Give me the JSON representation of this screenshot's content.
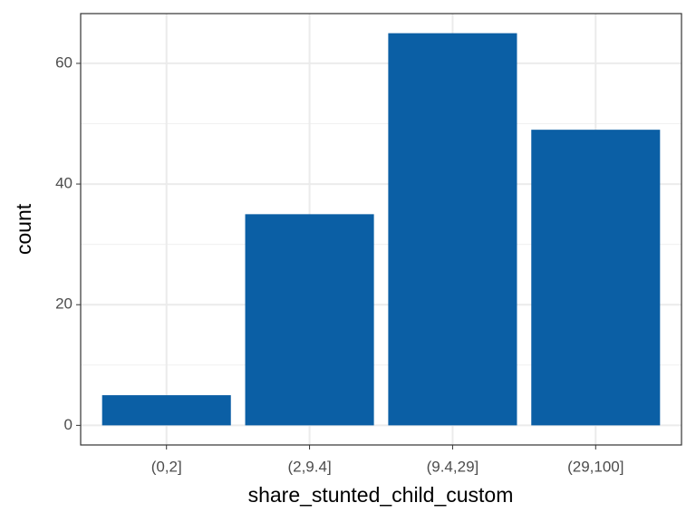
{
  "chart_data": {
    "type": "bar",
    "x_label": "share_stunted_child_custom",
    "y_label": "count",
    "categories": [
      "(0,2]",
      "(2,9.4]",
      "(9.4,29]",
      "(29,100]"
    ],
    "values": [
      5,
      35,
      65,
      49
    ],
    "color": "#0b5fa5",
    "ylim": [
      -3.25,
      68.25
    ],
    "yticks": [
      0,
      20,
      40,
      60
    ],
    "yminor": [
      10,
      30,
      50
    ],
    "grid": true
  }
}
